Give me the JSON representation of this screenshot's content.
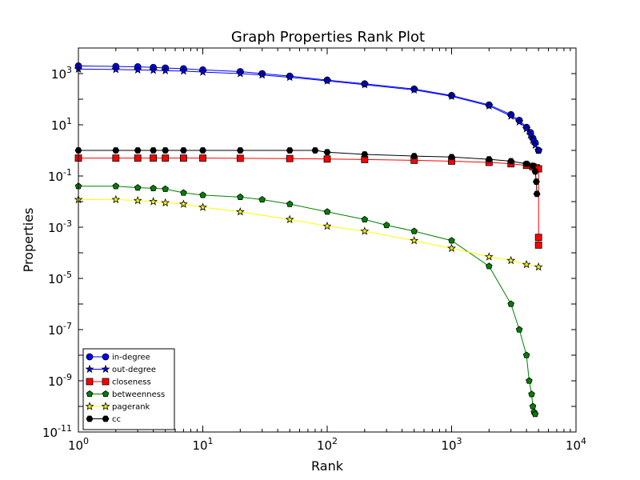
{
  "chart_data": {
    "type": "line",
    "title": "Graph Properties Rank Plot",
    "xlabel": "Rank",
    "ylabel": "Properties",
    "xscale": "log",
    "yscale": "log",
    "xlim": [
      1,
      10000
    ],
    "ylim": [
      1e-11,
      10000
    ],
    "x_ticks": [
      {
        "value": 1,
        "base": "10",
        "exp": "0"
      },
      {
        "value": 10,
        "base": "10",
        "exp": "1"
      },
      {
        "value": 100,
        "base": "10",
        "exp": "2"
      },
      {
        "value": 1000,
        "base": "10",
        "exp": "3"
      },
      {
        "value": 10000,
        "base": "10",
        "exp": "4"
      }
    ],
    "y_ticks": [
      {
        "value": 1e-11,
        "base": "10",
        "exp": "-11"
      },
      {
        "value": 1e-09,
        "base": "10",
        "exp": "-9"
      },
      {
        "value": 1e-07,
        "base": "10",
        "exp": "-7"
      },
      {
        "value": 1e-05,
        "base": "10",
        "exp": "-5"
      },
      {
        "value": 0.001,
        "base": "10",
        "exp": "-3"
      },
      {
        "value": 0.1,
        "base": "10",
        "exp": "-1"
      },
      {
        "value": 10,
        "base": "10",
        "exp": "1"
      },
      {
        "value": 1000,
        "base": "10",
        "exp": "3"
      }
    ],
    "grid": false,
    "legend_position": "lower-left",
    "series": [
      {
        "name": "in-degree",
        "color": "#0000ff",
        "marker": "circle",
        "x": [
          1,
          2,
          3,
          4,
          5,
          7,
          10,
          20,
          30,
          50,
          100,
          200,
          500,
          1000,
          2000,
          3000,
          3500,
          4000,
          4300,
          4500,
          4700,
          5000
        ],
        "y": [
          2000,
          1900,
          1850,
          1750,
          1650,
          1550,
          1400,
          1200,
          1000,
          800,
          560,
          400,
          250,
          140,
          60,
          25,
          15,
          8,
          5,
          3,
          2,
          1
        ]
      },
      {
        "name": "out-degree",
        "color": "#0000ff",
        "marker": "star",
        "x": [
          1,
          2,
          3,
          4,
          5,
          7,
          10,
          20,
          30,
          50,
          100,
          200,
          500,
          1000,
          2000,
          3000,
          3500,
          4000,
          4300,
          4500,
          4700,
          5000
        ],
        "y": [
          1500,
          1450,
          1400,
          1350,
          1300,
          1250,
          1150,
          1000,
          880,
          720,
          520,
          370,
          230,
          130,
          55,
          22,
          13,
          7,
          4,
          2.5,
          1.6,
          1
        ]
      },
      {
        "name": "closeness",
        "color": "#ff0000",
        "marker": "square",
        "x": [
          1,
          2,
          3,
          4,
          5,
          7,
          10,
          20,
          50,
          100,
          200,
          500,
          1000,
          2000,
          3000,
          4000,
          4500,
          4800,
          5000,
          5000,
          5000
        ],
        "y": [
          0.5,
          0.5,
          0.5,
          0.5,
          0.5,
          0.5,
          0.5,
          0.49,
          0.48,
          0.46,
          0.44,
          0.41,
          0.38,
          0.34,
          0.3,
          0.26,
          0.23,
          0.21,
          0.19,
          0.0004,
          0.0002
        ]
      },
      {
        "name": "betweenness",
        "color": "#008000",
        "marker": "pentagon",
        "x": [
          1,
          2,
          3,
          4,
          5,
          7,
          10,
          20,
          30,
          50,
          100,
          200,
          300,
          500,
          1000,
          2000,
          3000,
          3500,
          4000,
          4200,
          4400,
          4500,
          4600,
          4700
        ],
        "y": [
          0.04,
          0.04,
          0.035,
          0.033,
          0.031,
          0.022,
          0.018,
          0.015,
          0.012,
          0.008,
          0.004,
          0.002,
          0.0012,
          0.0007,
          0.0003,
          3e-05,
          1e-06,
          1e-07,
          1e-08,
          1e-09,
          3e-10,
          1e-10,
          6e-11,
          5e-11
        ]
      },
      {
        "name": "pagerank",
        "color": "#ffff00",
        "marker": "star",
        "x": [
          1,
          2,
          3,
          4,
          5,
          7,
          10,
          20,
          50,
          100,
          200,
          500,
          1000,
          2000,
          3000,
          4000,
          5000
        ],
        "y": [
          0.012,
          0.012,
          0.011,
          0.01,
          0.009,
          0.008,
          0.006,
          0.004,
          0.002,
          0.0011,
          0.0007,
          0.0003,
          0.00015,
          7e-05,
          5e-05,
          3.5e-05,
          2.8e-05
        ]
      },
      {
        "name": "cc",
        "color": "#000000",
        "marker": "hexagon",
        "x": [
          1,
          2,
          3,
          4,
          5,
          7,
          10,
          20,
          50,
          80,
          100,
          200,
          500,
          1000,
          2000,
          3000,
          4000,
          4500,
          4700,
          4800,
          4850
        ],
        "y": [
          1,
          1,
          1,
          1,
          1,
          1,
          1,
          1,
          1,
          1,
          0.85,
          0.7,
          0.6,
          0.55,
          0.45,
          0.38,
          0.3,
          0.25,
          0.15,
          0.06,
          0.02
        ]
      }
    ]
  }
}
